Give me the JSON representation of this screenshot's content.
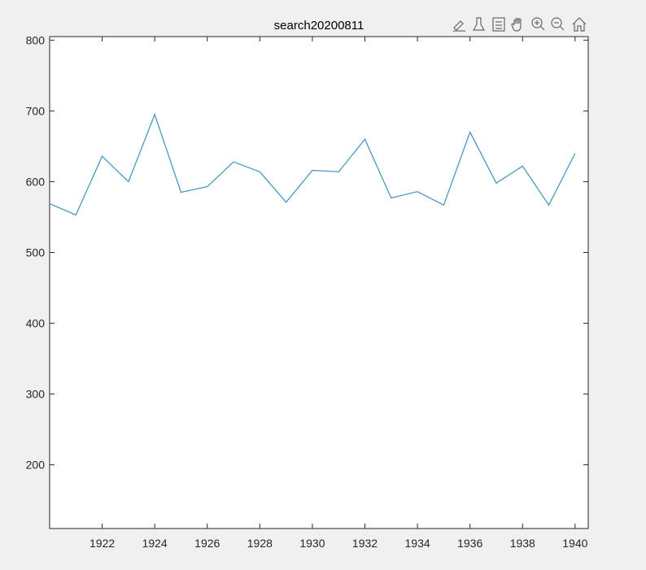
{
  "figure": {
    "background": "#f0f0f0",
    "axes_background": "#ffffff",
    "line_color": "#4a97c2",
    "toolbar": [
      {
        "name": "brush-icon",
        "tooltip": ""
      },
      {
        "name": "datatip-icon",
        "tooltip": ""
      },
      {
        "name": "legend-toggle-icon",
        "tooltip": ""
      },
      {
        "name": "pan-hand-icon",
        "tooltip": ""
      },
      {
        "name": "zoom-in-icon",
        "tooltip": ""
      },
      {
        "name": "zoom-out-icon",
        "tooltip": ""
      },
      {
        "name": "home-icon",
        "tooltip": ""
      }
    ]
  },
  "chart_data": {
    "type": "line",
    "title": "search20200811",
    "xlabel": "",
    "ylabel": "",
    "xlim": [
      1920,
      1940.5
    ],
    "ylim": [
      110,
      805
    ],
    "xticks": [
      1922,
      1924,
      1926,
      1928,
      1930,
      1932,
      1934,
      1936,
      1938,
      1940
    ],
    "yticks": [
      200,
      300,
      400,
      500,
      600,
      700,
      800
    ],
    "grid": false,
    "legend": "none",
    "x": [
      1920,
      1921,
      1922,
      1923,
      1924,
      1925,
      1926,
      1927,
      1928,
      1929,
      1930,
      1931,
      1932,
      1933,
      1934,
      1935,
      1936,
      1937,
      1938,
      1939,
      1940
    ],
    "series": [
      {
        "values": [
          569,
          553,
          636,
          600,
          695,
          585,
          593,
          628,
          614,
          571,
          616,
          614,
          660,
          577,
          586,
          567,
          670,
          598,
          622,
          567,
          640
        ]
      }
    ]
  }
}
